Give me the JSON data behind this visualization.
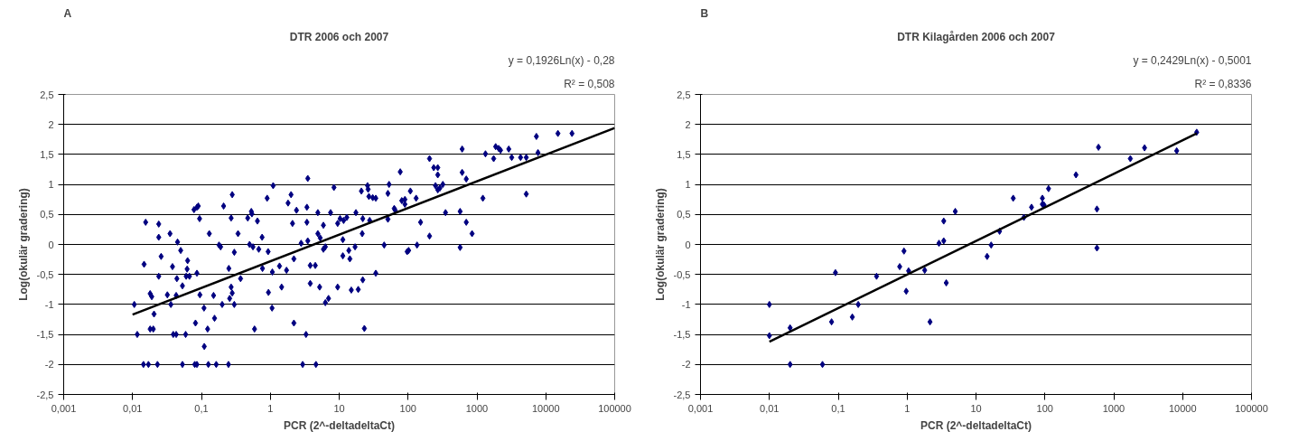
{
  "chart_data": [
    {
      "type": "scatter",
      "title": "DTR 2006 och 2007",
      "xlabel": "PCR (2^-deltadeltaCt)",
      "ylabel": "Log(okulär gradering)",
      "annotations": [
        "A",
        "y = 0,1926Ln(x) - 0,28",
        "R² = 0,508"
      ],
      "log": "x",
      "grid": "y",
      "marker": "diamond",
      "xlim": [
        0.001,
        100000
      ],
      "ylim": [
        -2.5,
        2.5
      ],
      "xticks": [
        {
          "value": 0.001,
          "label": "0,001"
        },
        {
          "value": 0.01,
          "label": "0,01"
        },
        {
          "value": 0.1,
          "label": "0,1"
        },
        1,
        10,
        100,
        1000,
        10000,
        100000
      ],
      "yticks": [
        {
          "value": -2.5,
          "label": "-2,5"
        },
        -2,
        {
          "value": -1.5,
          "label": "-1,5"
        },
        -1,
        {
          "value": -0.5,
          "label": "-0,5"
        },
        0,
        {
          "value": 0.5,
          "label": "0,5"
        },
        1,
        {
          "value": 1.5,
          "label": "1,5"
        },
        2,
        {
          "value": 2.5,
          "label": "2,5"
        }
      ],
      "series": [
        {
          "color": "#000080",
          "x": [
            0.0106,
            0.0117,
            0.0155,
            0.0147,
            0.0144,
            0.017,
            0.018,
            0.019,
            0.018,
            0.02,
            0.0205,
            0.024,
            0.024,
            0.026,
            0.024,
            0.023,
            0.032,
            0.035,
            0.036,
            0.038,
            0.039,
            0.043,
            0.043,
            0.045,
            0.044,
            0.05,
            0.053,
            0.053,
            0.059,
            0.06,
            0.067,
            0.063,
            0.062,
            0.078,
            0.086,
            0.09,
            0.094,
            0.086,
            0.082,
            0.08,
            0.086,
            0.095,
            0.109,
            0.11,
            0.123,
            0.126,
            0.13,
            0.15,
            0.164,
            0.155,
            0.18,
            0.19,
            0.2,
            0.21,
            0.247,
            0.25,
            0.257,
            0.27,
            0.28,
            0.3,
            0.28,
            0.27,
            0.3,
            0.34,
            0.37,
            0.47,
            0.53,
            0.54,
            0.5,
            0.56,
            0.59,
            0.65,
            0.68,
            0.76,
            0.77,
            0.9,
            0.93,
            0.94,
            1.07,
            1.06,
            1.1,
            1.36,
            1.46,
            1.72,
            1.81,
            2.0,
            2.1,
            2.2,
            2.2,
            2.4,
            2.8,
            2.95,
            3.3,
            3.4,
            3.4,
            3.5,
            3.5,
            3.8,
            4.5,
            3.8,
            4.6,
            4.9,
            4.9,
            5.3,
            5.9,
            5.9,
            6.3,
            6.3,
            7.0,
            5.2,
            7.5,
            8.4,
            9.5,
            9.5,
            10.3,
            11.6,
            12.9,
            11.3,
            11.3,
            13.8,
            14.3,
            15,
            17.5,
            17,
            18.9,
            21,
            25.8,
            26.3,
            27,
            30.7,
            34,
            22,
            21.6,
            22,
            27.7,
            34,
            23.2,
            45,
            51,
            51,
            53,
            63,
            65,
            77,
            81,
            90,
            90,
            97,
            102,
            108,
            131,
            135,
            152,
            205,
            205,
            236,
            270,
            270,
            250,
            270,
            290,
            320,
            350,
            570,
            570,
            610,
            610,
            700,
            700,
            850,
            1220,
            1330,
            1750,
            1870,
            2070,
            2200,
            2900,
            3200,
            4300,
            5200,
            5200,
            7300,
            7700,
            15000,
            24000
          ],
          "values": [
            -1.0,
            -1.5,
            0.37,
            -0.33,
            -2,
            -2,
            -0.82,
            -0.87,
            -1.41,
            -1.41,
            -1.16,
            0.34,
            0.12,
            -0.2,
            -0.53,
            -2,
            -0.84,
            0.18,
            -1.0,
            -0.37,
            -1.5,
            -1.5,
            -0.85,
            0.04,
            -0.57,
            -0.1,
            -0.69,
            -2,
            -1.5,
            -0.53,
            -0.53,
            -0.27,
            -0.41,
            0.58,
            0.62,
            0.64,
            0.43,
            -0.48,
            -1.31,
            -2,
            -2,
            -0.84,
            -1.06,
            -1.7,
            -1.41,
            -2,
            0.18,
            -0.85,
            -2,
            -1.23,
            -0.01,
            -0.04,
            -1.0,
            0.64,
            -2,
            -0.4,
            -0.9,
            -0.71,
            -0.81,
            -1.0,
            0.83,
            0.44,
            -0.13,
            0.18,
            -0.57,
            0.44,
            0.55,
            0.51,
            0.0,
            -0.04,
            -1.41,
            0.39,
            -0.08,
            0.12,
            -0.4,
            0.77,
            -0.12,
            -0.8,
            -0.46,
            -1.06,
            0.98,
            -0.36,
            -0.71,
            -0.43,
            0.69,
            0.83,
            0.35,
            -0.24,
            -1.31,
            0.57,
            0.02,
            -2,
            -1.5,
            0.62,
            0.37,
            0.06,
            1.1,
            -0.35,
            -0.35,
            -0.65,
            -2,
            0.53,
            0.18,
            0.11,
            0.32,
            -0.08,
            -0.04,
            -0.97,
            -0.9,
            -0.71,
            0.53,
            0.95,
            -0.71,
            0.35,
            0.43,
            0.4,
            0.45,
            0.08,
            -0.19,
            -0.1,
            -0.24,
            -0.76,
            0.53,
            -0.04,
            -0.75,
            0.89,
            0.98,
            0.92,
            0.8,
            0.78,
            0.77,
            0.43,
            0.18,
            -0.59,
            0.4,
            -0.48,
            -1.4,
            -0.01,
            0.42,
            0.85,
            1.0,
            0.6,
            0.57,
            1.21,
            0.73,
            0.75,
            0.67,
            -0.12,
            -0.1,
            0.89,
            0.77,
            -0.01,
            0.37,
            1.43,
            0.14,
            1.28,
            1.28,
            1.16,
            0.98,
            0.91,
            0.94,
            1.0,
            0.53,
            0.55,
            -0.05,
            1.59,
            1.2,
            1.09,
            0.37,
            0.18,
            0.77,
            1.51,
            1.43,
            1.63,
            1.6,
            1.57,
            1.59,
            1.45,
            1.45,
            1.45,
            0.84,
            1.8,
            1.53,
            1.85,
            1.85
          ]
        },
        {
          "type": "line",
          "marker": "none",
          "color": "#000000",
          "x": [
            0.01,
            100000
          ],
          "values": [
            -1.17,
            1.94
          ]
        }
      ]
    },
    {
      "type": "scatter",
      "title": "DTR Kilagården 2006 och 2007",
      "xlabel": "PCR (2^-deltadeltaCt)",
      "ylabel": "Log(okulär gradering)",
      "annotations": [
        "B",
        "y = 0,2429Ln(x) - 0,5001",
        "R² = 0,8336"
      ],
      "log": "x",
      "grid": "y",
      "marker": "diamond",
      "xlim": [
        0.001,
        100000
      ],
      "ylim": [
        -2.5,
        2.5
      ],
      "xticks": [
        {
          "value": 0.001,
          "label": "0,001"
        },
        {
          "value": 0.01,
          "label": "0,01"
        },
        {
          "value": 0.1,
          "label": "0,1"
        },
        1,
        10,
        100,
        1000,
        10000,
        100000
      ],
      "yticks": [
        {
          "value": -2.5,
          "label": "-2,5"
        },
        -2,
        {
          "value": -1.5,
          "label": "-1,5"
        },
        -1,
        {
          "value": -0.5,
          "label": "-0,5"
        },
        0,
        {
          "value": 0.5,
          "label": "0,5"
        },
        1,
        {
          "value": 1.5,
          "label": "1,5"
        },
        2,
        {
          "value": 2.5,
          "label": "2,5"
        }
      ],
      "series": [
        {
          "color": "#000080",
          "x": [
            0.01,
            0.01,
            0.02,
            0.02,
            0.059,
            0.08,
            0.091,
            0.16,
            0.195,
            0.36,
            0.78,
            0.9,
            0.97,
            1.05,
            1.8,
            2.15,
            2.9,
            3.4,
            3.4,
            3.7,
            5,
            14.5,
            16.6,
            22,
            34.7,
            49.6,
            64,
            92,
            92,
            97,
            113,
            283,
            570,
            570,
            600,
            1740,
            2800,
            8200,
            16000
          ],
          "values": [
            -1.0,
            -1.52,
            -1.39,
            -2.0,
            -2.0,
            -1.29,
            -0.47,
            -1.21,
            -1.0,
            -0.53,
            -0.37,
            -0.11,
            -0.78,
            -0.44,
            -0.43,
            -1.29,
            0.02,
            0.06,
            0.39,
            -0.64,
            0.55,
            -0.2,
            -0.01,
            0.22,
            0.77,
            0.45,
            0.62,
            0.77,
            0.67,
            0.66,
            0.93,
            1.16,
            0.59,
            -0.06,
            1.62,
            1.43,
            1.61,
            1.56,
            1.87
          ]
        },
        {
          "type": "line",
          "marker": "none",
          "color": "#000000",
          "x": [
            0.01,
            16000
          ],
          "values": [
            -1.62,
            1.85
          ]
        }
      ]
    }
  ]
}
